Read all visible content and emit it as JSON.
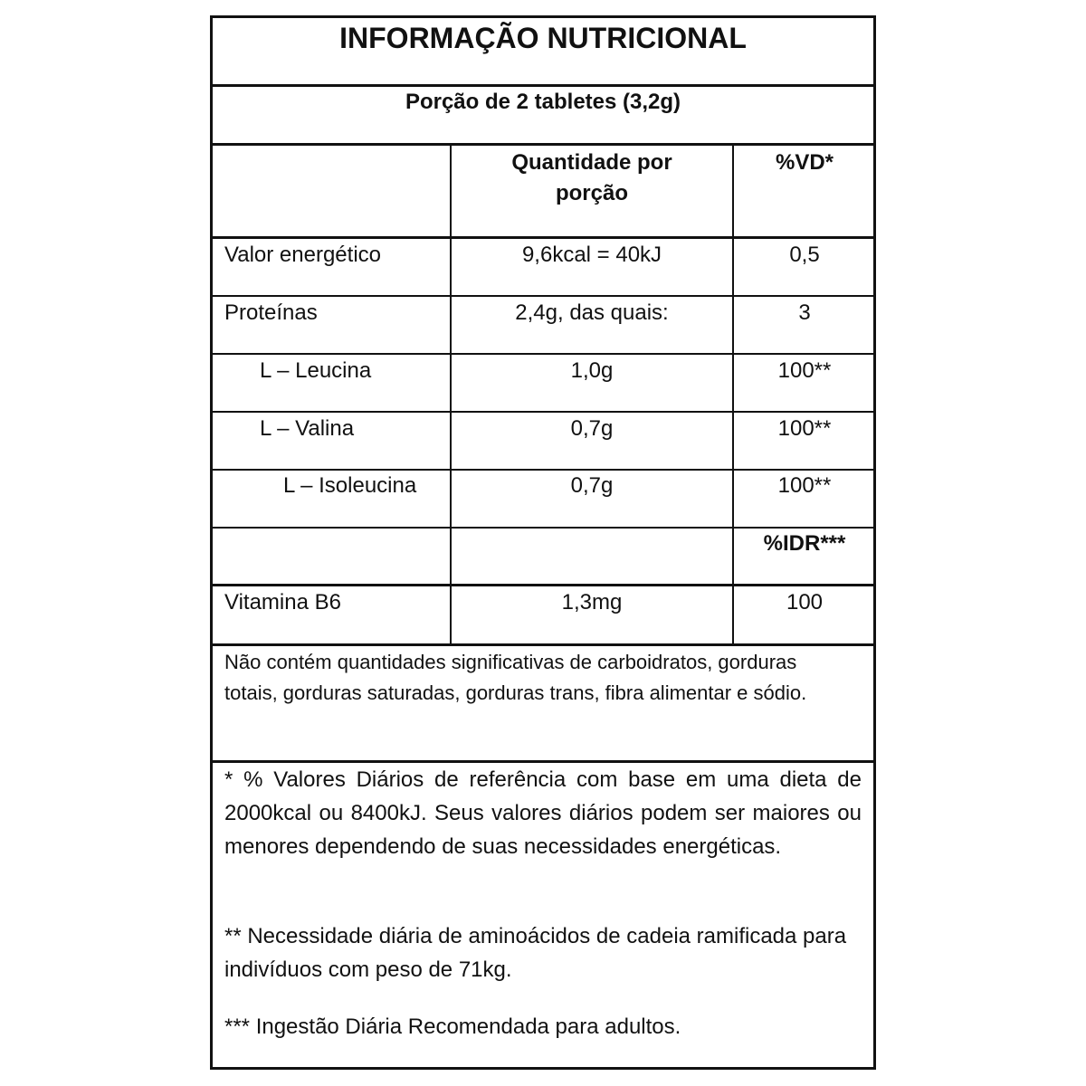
{
  "title": "INFORMAÇÃO NUTRICIONAL",
  "serving": "Porção de 2 tabletes (3,2g)",
  "header": {
    "qty_line1": "Quantidade por",
    "qty_line2": "porção",
    "vd": "%VD*"
  },
  "rows": [
    {
      "name": "Valor energético",
      "qty": "9,6kcal = 40kJ",
      "vd": "0,5"
    },
    {
      "name": "Proteínas",
      "qty": "2,4g, das quais:",
      "vd": "3"
    },
    {
      "name": "L – Leucina",
      "qty": "1,0g",
      "vd": "100**"
    },
    {
      "name": "L – Valina",
      "qty": "0,7g",
      "vd": "100**"
    },
    {
      "name": "L – Isoleucina",
      "qty": "0,7g",
      "vd": "100**"
    }
  ],
  "idr_header": "%IDR***",
  "vitamin": {
    "name": "Vitamina B6",
    "qty": "1,3mg",
    "idr": "100"
  },
  "not_contains": "Não contém quantidades significativas de carboidratos, gorduras totais, gorduras saturadas, gorduras trans, fibra alimentar e sódio.",
  "footnotes": [
    "* % Valores Diários de referência com base em uma dieta de 2000kcal ou 8400kJ. Seus valores diários podem ser maiores ou menores dependendo de suas necessidades energéticas.",
    "** Necessidade diária de aminoácidos de cadeia ramificada para indivíduos com peso de 71kg.",
    "*** Ingestão Diária Recomendada para adultos."
  ]
}
